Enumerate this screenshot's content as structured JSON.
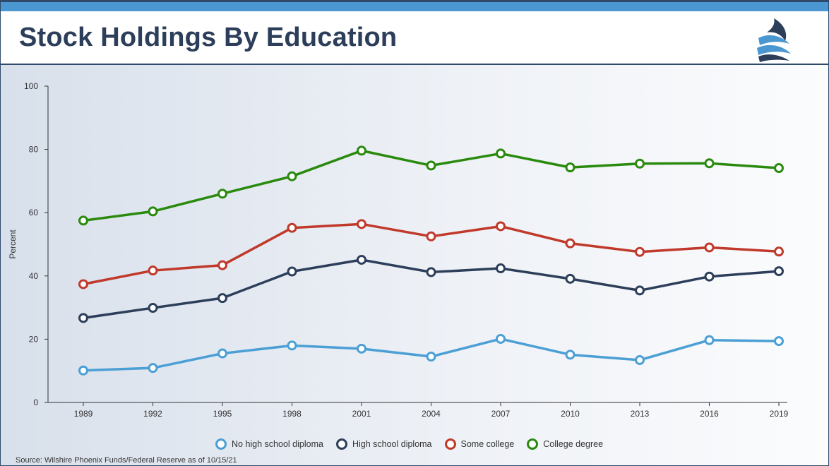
{
  "header": {
    "title": "Stock Holdings By Education"
  },
  "logo": {
    "icon": "wave-logo-icon",
    "colors": [
      "#2c3e5a",
      "#4b97d1"
    ]
  },
  "chart_data": {
    "type": "line",
    "title": "Stock Holdings By Education",
    "xlabel": "",
    "ylabel": "Percent",
    "x": [
      1989,
      1992,
      1995,
      1998,
      2001,
      2004,
      2007,
      2010,
      2013,
      2016,
      2019
    ],
    "x_tick_labels": [
      "1989",
      "1992",
      "1995",
      "1998",
      "2001",
      "2004",
      "2007",
      "2010",
      "2013",
      "2016",
      "2019"
    ],
    "y_ticks": [
      0,
      20,
      40,
      60,
      80,
      100
    ],
    "ylim": [
      0,
      100
    ],
    "grid": false,
    "legend_position": "bottom",
    "series": [
      {
        "name": "No high school diploma",
        "color": "#4b9fd5",
        "values": [
          10.1,
          10.9,
          15.5,
          18.0,
          17.0,
          14.5,
          20.1,
          15.1,
          13.4,
          19.7,
          19.4
        ]
      },
      {
        "name": "High school diploma",
        "color": "#2c3e5a",
        "values": [
          26.7,
          29.9,
          33.0,
          41.4,
          45.1,
          41.2,
          42.4,
          39.1,
          35.4,
          39.8,
          41.5
        ]
      },
      {
        "name": "Some college",
        "color": "#c0392b",
        "values": [
          37.4,
          41.7,
          43.4,
          55.2,
          56.4,
          52.5,
          55.7,
          50.3,
          47.6,
          49.0,
          47.7
        ]
      },
      {
        "name": "College degree",
        "color": "#2a8a0e",
        "values": [
          57.5,
          60.4,
          66.0,
          71.5,
          79.6,
          74.9,
          78.7,
          74.3,
          75.5,
          75.6,
          74.1
        ]
      }
    ]
  },
  "footer": {
    "source": "Source: Wilshire Phoenix Funds/Federal Reserve as of 10/15/21"
  }
}
